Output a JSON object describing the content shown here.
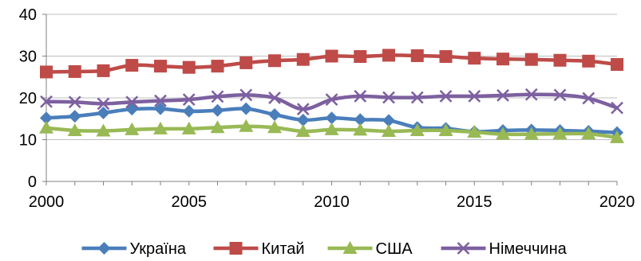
{
  "chart_data": {
    "type": "line",
    "title": "",
    "xlabel": "",
    "ylabel": "",
    "xlim": [
      2000,
      2020
    ],
    "ylim": [
      0,
      40
    ],
    "x_ticks": [
      2000,
      2005,
      2010,
      2015,
      2020
    ],
    "y_ticks": [
      0,
      10,
      20,
      30,
      40
    ],
    "grid": "horizontal",
    "legend_position": "bottom",
    "x": [
      2000,
      2001,
      2002,
      2003,
      2004,
      2005,
      2006,
      2007,
      2008,
      2009,
      2010,
      2011,
      2012,
      2013,
      2014,
      2015,
      2016,
      2017,
      2018,
      2019,
      2020
    ],
    "series": [
      {
        "name": "Україна",
        "color": "#4a7ebb",
        "marker": "diamond",
        "values": [
          15.2,
          15.6,
          16.4,
          17.3,
          17.4,
          16.8,
          17.0,
          17.4,
          16.0,
          14.7,
          15.2,
          14.8,
          14.6,
          12.9,
          12.7,
          11.9,
          12.2,
          12.3,
          12.2,
          12.0,
          11.7
        ]
      },
      {
        "name": "Китай",
        "color": "#be4b48",
        "marker": "square",
        "values": [
          26.2,
          26.3,
          26.5,
          27.8,
          27.6,
          27.3,
          27.6,
          28.4,
          28.9,
          29.2,
          30.0,
          29.9,
          30.2,
          30.1,
          29.9,
          29.5,
          29.3,
          29.2,
          29.0,
          28.8,
          28.0
        ]
      },
      {
        "name": "США",
        "color": "#98b954",
        "marker": "triangle",
        "values": [
          12.8,
          12.2,
          12.1,
          12.4,
          12.6,
          12.6,
          12.9,
          13.2,
          12.9,
          12.0,
          12.4,
          12.3,
          12.0,
          12.2,
          12.2,
          11.8,
          11.3,
          11.3,
          11.4,
          11.4,
          10.5
        ]
      },
      {
        "name": "Німеччина",
        "color": "#7d60a0",
        "marker": "x",
        "values": [
          19.1,
          19.0,
          18.6,
          19.0,
          19.3,
          19.6,
          20.3,
          20.7,
          20.0,
          17.3,
          19.6,
          20.4,
          20.1,
          20.1,
          20.4,
          20.4,
          20.6,
          20.8,
          20.7,
          19.9,
          17.6
        ]
      }
    ]
  }
}
